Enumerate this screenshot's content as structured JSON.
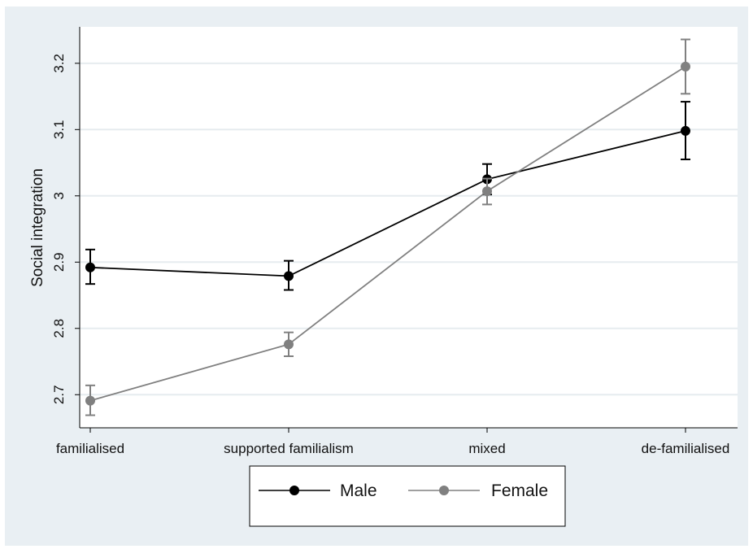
{
  "chart_data": {
    "type": "line",
    "title": "",
    "xlabel": "",
    "ylabel": "Social integration",
    "categories": [
      "familialised",
      "supported familialism",
      "mixed",
      "de-familialised"
    ],
    "ylim": [
      2.65,
      3.255
    ],
    "yticks": [
      2.7,
      2.8,
      2.9,
      3,
      3.1,
      3.2
    ],
    "ytick_labels": [
      "2.7",
      "2.8",
      "2.9",
      "3",
      "3.1",
      "3.2"
    ],
    "grid": true,
    "legend_position": "bottom",
    "series": [
      {
        "name": "Male",
        "color": "#000000",
        "values": [
          2.892,
          2.879,
          3.025,
          3.098
        ],
        "ci_low": [
          2.867,
          2.858,
          3.002,
          3.055
        ],
        "ci_high": [
          2.919,
          2.902,
          3.048,
          3.142
        ]
      },
      {
        "name": "Female",
        "color": "#808080",
        "values": [
          2.691,
          2.776,
          3.007,
          3.195
        ],
        "ci_low": [
          2.669,
          2.758,
          2.987,
          3.154
        ],
        "ci_high": [
          2.714,
          2.794,
          3.026,
          3.236
        ]
      }
    ]
  }
}
